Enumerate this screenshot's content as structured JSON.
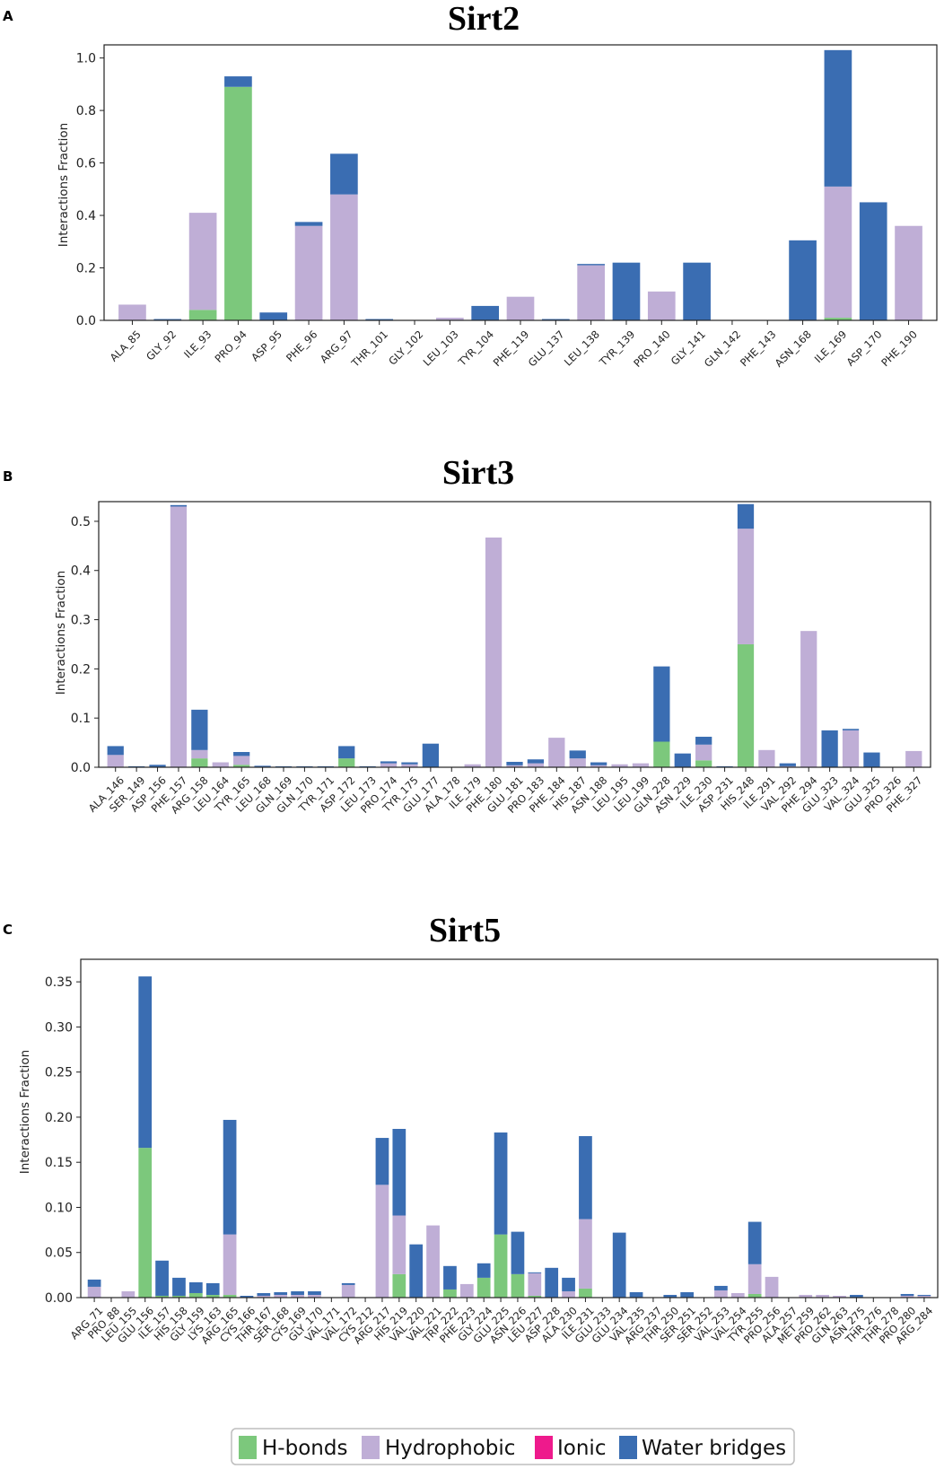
{
  "colors": {
    "hbonds": "#7cc87c",
    "hydrophobic": "#bfaed6",
    "ionic": "#ee1a8c",
    "water": "#3a6db2"
  },
  "legend": {
    "hbonds": "H-bonds",
    "hydrophobic": "Hydrophobic",
    "ionic": "Ionic",
    "water": "Water bridges"
  },
  "chart_data": [
    {
      "panel": "A",
      "type": "bar",
      "stacked": true,
      "title": "Sirt2",
      "ylabel": "Interactions Fraction",
      "ylim": [
        0,
        1.05
      ],
      "yticks": [
        "0.0",
        "0.2",
        "0.4",
        "0.6",
        "0.8",
        "1.0"
      ],
      "categories": [
        "ALA_85",
        "GLY_92",
        "ILE_93",
        "PRO_94",
        "ASP_95",
        "PHE_96",
        "ARG_97",
        "THR_101",
        "GLY_102",
        "LEU_103",
        "TYR_104",
        "PHE_119",
        "GLU_137",
        "LEU_138",
        "TYR_139",
        "PRO_140",
        "GLY_141",
        "GLN_142",
        "PHE_143",
        "ASN_168",
        "ILE_169",
        "ASP_170",
        "PHE_190"
      ],
      "series": [
        {
          "name": "H-bonds",
          "key": "hbonds",
          "values": [
            0,
            0,
            0.04,
            0.89,
            0,
            0,
            0,
            0,
            0,
            0,
            0,
            0,
            0,
            0,
            0,
            0,
            0,
            0,
            0,
            0,
            0.01,
            0,
            0
          ]
        },
        {
          "name": "Hydrophobic",
          "key": "hydrophobic",
          "values": [
            0.06,
            0,
            0.37,
            0,
            0,
            0.36,
            0.48,
            0,
            0,
            0.01,
            0,
            0.09,
            0,
            0.21,
            0,
            0.11,
            0,
            0,
            0,
            0,
            0.5,
            0,
            0.36
          ]
        },
        {
          "name": "Ionic",
          "key": "ionic",
          "values": [
            0,
            0,
            0,
            0,
            0,
            0,
            0,
            0,
            0,
            0,
            0,
            0,
            0,
            0,
            0,
            0,
            0,
            0,
            0,
            0,
            0,
            0,
            0
          ]
        },
        {
          "name": "Water bridges",
          "key": "water",
          "values": [
            0,
            0.005,
            0,
            0.04,
            0.03,
            0.015,
            0.155,
            0.005,
            0,
            0,
            0.055,
            0,
            0.005,
            0.005,
            0.22,
            0,
            0.22,
            0,
            0,
            0.305,
            0.52,
            0.45,
            0
          ]
        }
      ]
    },
    {
      "panel": "B",
      "type": "bar",
      "stacked": true,
      "title": "Sirt3",
      "ylabel": "Interactions Fraction",
      "ylim": [
        0,
        0.54
      ],
      "yticks": [
        "0.0",
        "0.1",
        "0.2",
        "0.3",
        "0.4",
        "0.5"
      ],
      "categories": [
        "ALA_146",
        "SER_149",
        "ASP_156",
        "PHE_157",
        "ARG_158",
        "LEU_164",
        "TYR_165",
        "LEU_168",
        "GLN_169",
        "GLN_170",
        "TYR_171",
        "ASP_172",
        "LEU_173",
        "PRO_174",
        "TYR_175",
        "GLU_177",
        "ALA_178",
        "ILE_179",
        "PHE_180",
        "GLU_181",
        "PRO_183",
        "PHE_184",
        "HIS_187",
        "ASN_188",
        "LEU_195",
        "LEU_199",
        "GLN_228",
        "ASN_229",
        "ILE_230",
        "ASP_231",
        "HIS_248",
        "ILE_291",
        "VAL_292",
        "PHE_294",
        "GLU_323",
        "VAL_324",
        "GLU_325",
        "PRO_326",
        "PHE_327"
      ],
      "series": [
        {
          "name": "H-bonds",
          "key": "hbonds",
          "values": [
            0,
            0,
            0,
            0,
            0.018,
            0,
            0.005,
            0,
            0,
            0,
            0,
            0.018,
            0,
            0,
            0,
            0,
            0,
            0,
            0,
            0,
            0,
            0,
            0,
            0,
            0,
            0,
            0.052,
            0,
            0.014,
            0,
            0.25,
            0,
            0,
            0,
            0,
            0,
            0,
            0,
            0
          ]
        },
        {
          "name": "Hydrophobic",
          "key": "hydrophobic",
          "values": [
            0.025,
            0,
            0,
            0.53,
            0.017,
            0.01,
            0.018,
            0,
            0,
            0,
            0,
            0,
            0,
            0.008,
            0.006,
            0,
            0,
            0.006,
            0.467,
            0.004,
            0.008,
            0.06,
            0.018,
            0.004,
            0.006,
            0.008,
            0,
            0,
            0.032,
            0,
            0.235,
            0.035,
            0.002,
            0.277,
            0,
            0.075,
            0,
            0,
            0.033
          ]
        },
        {
          "name": "Ionic",
          "key": "ionic",
          "values": [
            0,
            0,
            0,
            0,
            0,
            0,
            0,
            0,
            0,
            0,
            0,
            0,
            0,
            0,
            0,
            0,
            0,
            0,
            0,
            0,
            0,
            0,
            0,
            0,
            0,
            0,
            0,
            0,
            0,
            0,
            0,
            0,
            0,
            0,
            0,
            0,
            0,
            0,
            0
          ]
        },
        {
          "name": "Water bridges",
          "key": "water",
          "values": [
            0.018,
            0.002,
            0.005,
            0.003,
            0.082,
            0,
            0.008,
            0.003,
            0.002,
            0.002,
            0.002,
            0.025,
            0.002,
            0.004,
            0.004,
            0.048,
            0,
            0,
            0,
            0.007,
            0.008,
            0,
            0.016,
            0.006,
            0,
            0,
            0.153,
            0.028,
            0.016,
            0.002,
            0.05,
            0,
            0.006,
            0,
            0.075,
            0.003,
            0.03,
            0,
            0
          ]
        }
      ]
    },
    {
      "panel": "C",
      "type": "bar",
      "stacked": true,
      "title": "Sirt5",
      "ylabel": "Interactions Fraction",
      "ylim": [
        0,
        0.375
      ],
      "yticks": [
        "0.00",
        "0.05",
        "0.10",
        "0.15",
        "0.20",
        "0.25",
        "0.30",
        "0.35"
      ],
      "categories": [
        "ARG_71",
        "PRO_88",
        "LEU_155",
        "GLU_156",
        "ILE_157",
        "HIS_158",
        "GLY_159",
        "LYS_163",
        "ARG_165",
        "CYS_166",
        "THR_167",
        "SER_168",
        "CYS_169",
        "GLY_170",
        "VAL_171",
        "VAL_172",
        "CYS_212",
        "ARG_217",
        "HIS_219",
        "VAL_220",
        "VAL_221",
        "TRP_222",
        "PHE_223",
        "GLY_224",
        "GLU_225",
        "ASN_226",
        "LEU_227",
        "ASP_228",
        "ALA_230",
        "ILE_231",
        "GLU_233",
        "GLU_234",
        "VAL_235",
        "ARG_237",
        "THR_250",
        "SER_251",
        "SER_252",
        "VAL_253",
        "VAL_254",
        "TYR_255",
        "PRO_256",
        "ALA_257",
        "MET_259",
        "PRO_262",
        "GLN_263",
        "ASN_275",
        "THR_276",
        "THR_278",
        "PRO_280",
        "ARG_284"
      ],
      "series": [
        {
          "name": "H-bonds",
          "key": "hbonds",
          "values": [
            0,
            0,
            0,
            0.166,
            0.002,
            0.002,
            0.005,
            0.003,
            0.003,
            0,
            0,
            0,
            0,
            0,
            0,
            0,
            0,
            0,
            0.026,
            0,
            0,
            0.009,
            0,
            0.022,
            0.07,
            0.026,
            0.002,
            0,
            0,
            0.01,
            0,
            0,
            0,
            0,
            0,
            0,
            0,
            0,
            0,
            0.004,
            0,
            0,
            0,
            0,
            0,
            0,
            0,
            0,
            0,
            0
          ]
        },
        {
          "name": "Hydrophobic",
          "key": "hydrophobic",
          "values": [
            0.012,
            0,
            0.007,
            0,
            0,
            0,
            0,
            0,
            0.067,
            0,
            0.002,
            0.003,
            0.003,
            0.003,
            0,
            0.014,
            0,
            0.125,
            0.065,
            0,
            0.08,
            0,
            0.015,
            0,
            0,
            0,
            0.025,
            0,
            0.007,
            0.077,
            0,
            0,
            0,
            0,
            0,
            0,
            0,
            0.008,
            0.005,
            0.033,
            0.023,
            0,
            0.003,
            0.003,
            0.002,
            0,
            0,
            0,
            0.002,
            0.002
          ]
        },
        {
          "name": "Ionic",
          "key": "ionic",
          "values": [
            0,
            0,
            0,
            0,
            0,
            0,
            0,
            0,
            0,
            0,
            0,
            0,
            0,
            0,
            0,
            0,
            0,
            0,
            0,
            0,
            0,
            0,
            0,
            0,
            0,
            0,
            0,
            0,
            0,
            0,
            0,
            0,
            0,
            0,
            0,
            0,
            0,
            0,
            0,
            0,
            0,
            0,
            0,
            0,
            0,
            0,
            0,
            0,
            0,
            0
          ]
        },
        {
          "name": "Water bridges",
          "key": "water",
          "values": [
            0.008,
            0,
            0,
            0.19,
            0.039,
            0.02,
            0.012,
            0.013,
            0.127,
            0.002,
            0.003,
            0.003,
            0.004,
            0.004,
            0,
            0.002,
            0,
            0.052,
            0.096,
            0.059,
            0,
            0.026,
            0,
            0.016,
            0.113,
            0.047,
            0.001,
            0.033,
            0.015,
            0.092,
            0,
            0.072,
            0.006,
            0,
            0.003,
            0.006,
            0,
            0.005,
            0,
            0.047,
            0,
            0,
            0,
            0,
            0,
            0.003,
            0,
            0,
            0.002,
            0.001
          ]
        }
      ]
    }
  ]
}
